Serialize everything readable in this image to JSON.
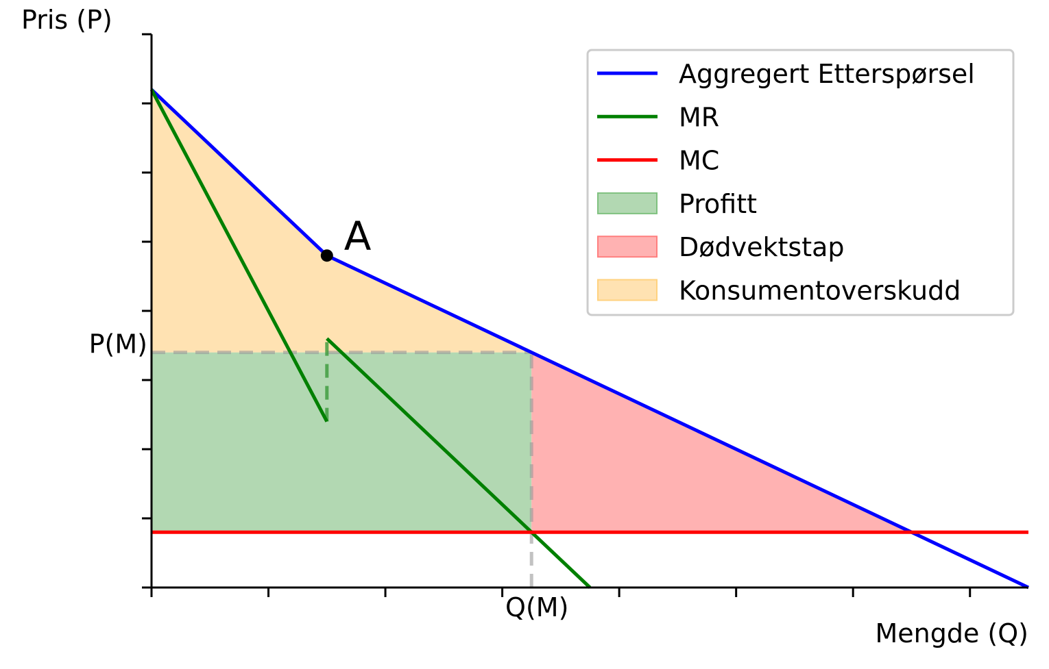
{
  "chart_data": {
    "type": "line",
    "xlabel": "Mengde (Q)",
    "ylabel": "Pris (P)",
    "xlim": [
      0,
      15
    ],
    "ylim": [
      0,
      16
    ],
    "grid": false,
    "legend_position": "top-right",
    "x_ticks": [
      0,
      2,
      4,
      6,
      8,
      10,
      12,
      14
    ],
    "y_ticks": [
      0,
      2,
      4,
      6,
      8,
      10,
      12,
      14,
      16
    ],
    "x_tick_labels": [
      {
        "value": 6.5,
        "label": "Q(M)"
      }
    ],
    "y_tick_labels": [
      {
        "value": 6.8,
        "label": "P(M)"
      }
    ],
    "colors": {
      "demand": "#0000ff",
      "mr": "#008000",
      "mc": "#ff0000",
      "profit": "#b2d8b2",
      "deadweight": "#ffb2b2",
      "consumer_surplus": "#ffe2b2"
    },
    "series": [
      {
        "name": "Aggregert Etterspørsel",
        "color": "#0000ff",
        "points": [
          [
            0,
            14.4
          ],
          [
            3,
            9.6
          ],
          [
            6.5,
            6.8
          ],
          [
            15,
            0
          ]
        ]
      },
      {
        "name": "MR",
        "color": "#008000",
        "segments": [
          [
            [
              0,
              14.4
            ],
            [
              3,
              4.8
            ]
          ],
          [
            [
              3,
              7.2
            ],
            [
              7.5,
              0
            ]
          ]
        ]
      },
      {
        "name": "MC",
        "color": "#ff0000",
        "points": [
          [
            0,
            1.6
          ],
          [
            15,
            1.6
          ]
        ]
      }
    ],
    "areas": [
      {
        "name": "Profitt",
        "polygon": [
          [
            0,
            1.6
          ],
          [
            6.5,
            1.6
          ],
          [
            6.5,
            6.8
          ],
          [
            0,
            6.8
          ]
        ]
      },
      {
        "name": "Dødvektstap",
        "polygon": [
          [
            6.5,
            1.6
          ],
          [
            13,
            1.6
          ],
          [
            6.5,
            6.8
          ]
        ]
      },
      {
        "name": "Konsumentoverskudd",
        "polygon": [
          [
            0,
            14.4
          ],
          [
            3,
            9.6
          ],
          [
            6.5,
            6.8
          ],
          [
            0,
            6.8
          ]
        ]
      }
    ],
    "reference_lines": [
      {
        "from": [
          0,
          6.8
        ],
        "to": [
          6.5,
          6.8
        ],
        "style": "dashed"
      },
      {
        "from": [
          6.5,
          0
        ],
        "to": [
          6.5,
          6.8
        ],
        "style": "dashed"
      },
      {
        "from": [
          3,
          4.8
        ],
        "to": [
          3,
          7.2
        ],
        "style": "dashed",
        "color": "#008000"
      }
    ],
    "annotations": [
      {
        "label": "A",
        "x": 3,
        "y": 9.6
      }
    ]
  }
}
